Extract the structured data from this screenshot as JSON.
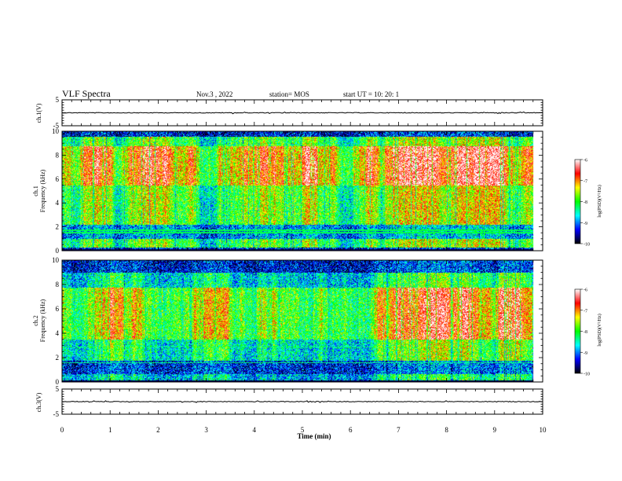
{
  "header": {
    "title": "VLF Spectra",
    "date": "Nov.3 , 2022",
    "station": "station= MOS",
    "start": "start UT = 10: 20: 1"
  },
  "chart_data": {
    "type": "heatmap",
    "title": "VLF Spectra",
    "xlabel": "Time (min)",
    "xlim": [
      0,
      10
    ],
    "xticks": [
      0,
      1,
      2,
      3,
      4,
      5,
      6,
      7,
      8,
      9,
      10
    ],
    "waveform_panels": [
      {
        "id": "ch1-waveform",
        "ylabel": "ch.1(V)",
        "ylim": [
          -5,
          5
        ],
        "yticks": [
          5,
          -5
        ]
      },
      {
        "id": "ch3-waveform",
        "ylabel": "ch.3(V)",
        "ylim": [
          -5,
          5
        ],
        "yticks": [
          5,
          -5
        ]
      }
    ],
    "spectrogram_panels": [
      {
        "id": "ch1-spectrogram",
        "ylabel_top": "ch.1",
        "ylabel": "Frequency (kHz)",
        "ylim": [
          0,
          10
        ],
        "yticks": [
          0,
          2,
          4,
          6,
          8,
          10
        ],
        "data_tmax": 9.8
      },
      {
        "id": "ch2-spectrogram",
        "ylabel_top": "ch.2",
        "ylabel": "Frequency (kHz)",
        "ylim": [
          0,
          10
        ],
        "yticks": [
          0,
          2,
          4,
          6,
          8,
          10
        ],
        "data_tmax": 9.8
      }
    ],
    "colorbar": {
      "label": "log(PSD)(V²/Hz)",
      "range": [
        -10,
        -6
      ],
      "ticks": [
        -6,
        -7,
        -8,
        -9,
        -10
      ],
      "colors": [
        "#000000",
        "#0000ff",
        "#00ffff",
        "#00ff00",
        "#ffff00",
        "#ff0000",
        "#ffffff"
      ]
    }
  }
}
